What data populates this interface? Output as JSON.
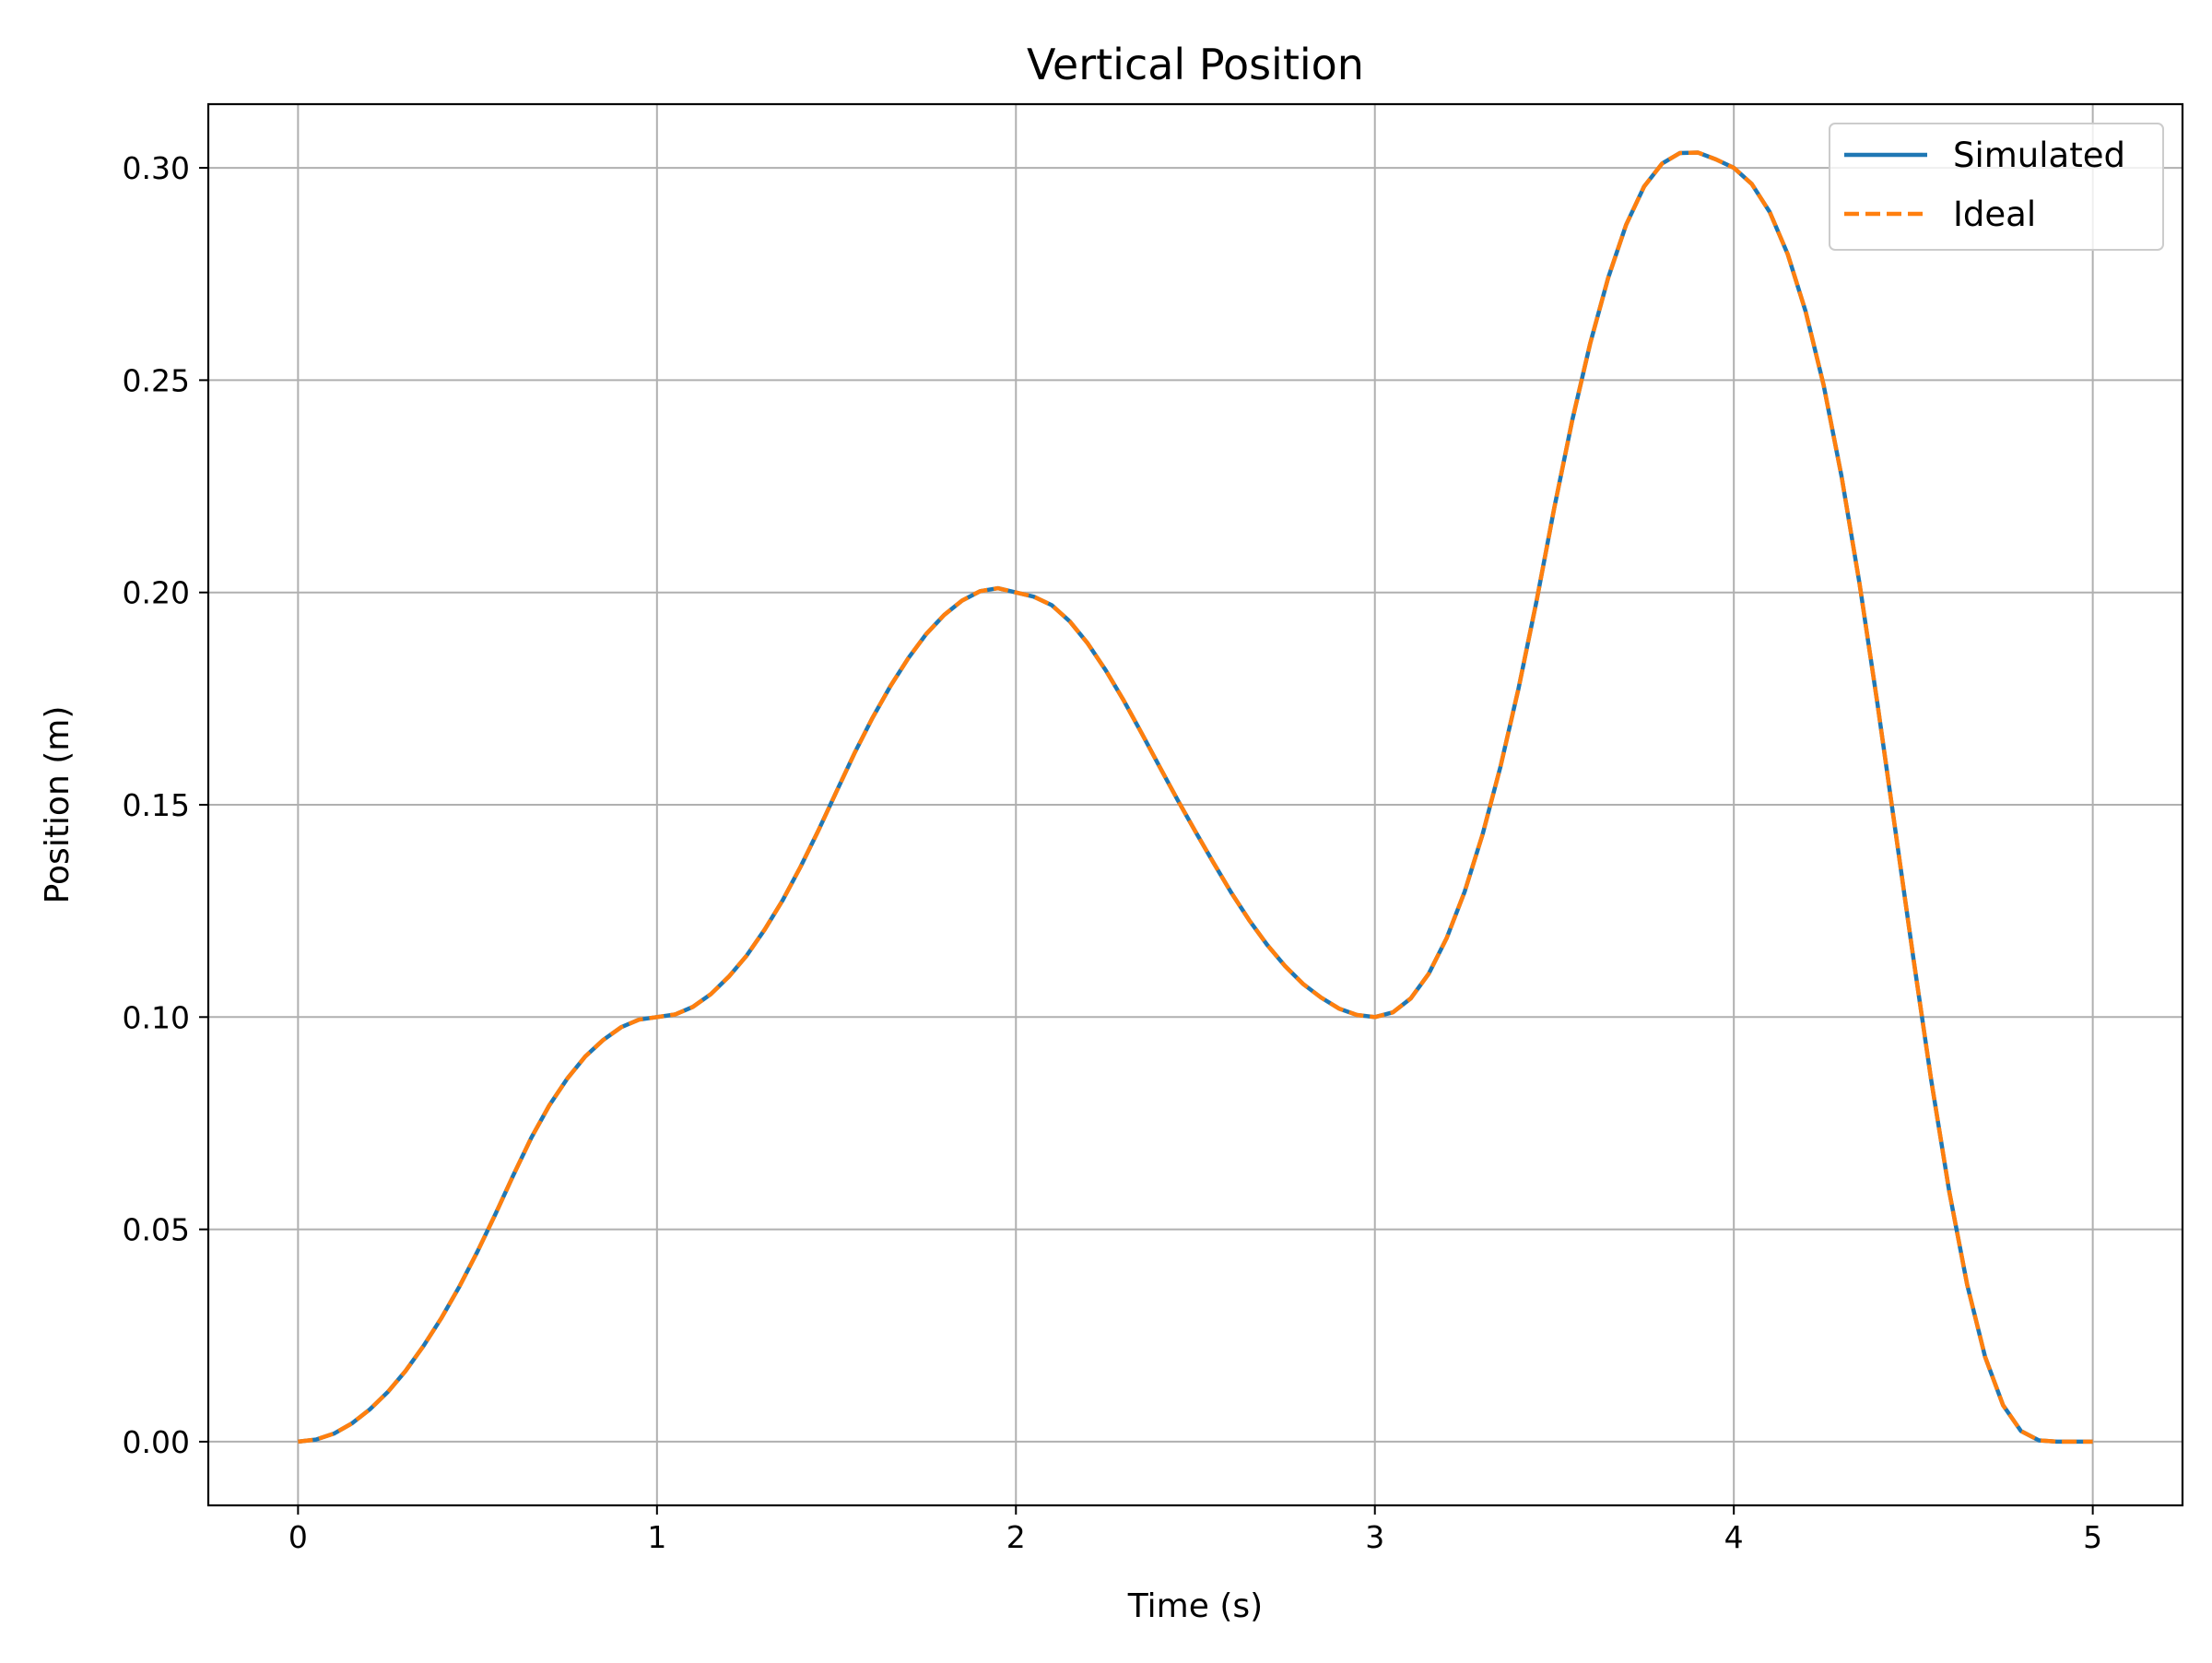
{
  "chart_data": {
    "type": "line",
    "title": "Vertical Position",
    "xlabel": "Time (s)",
    "ylabel": "Position (m)",
    "xlim": [
      -0.25,
      5.25
    ],
    "ylim": [
      -0.015,
      0.315
    ],
    "x_ticks": [
      0,
      1,
      2,
      3,
      4,
      5
    ],
    "x_tick_labels": [
      "0",
      "1",
      "2",
      "3",
      "4",
      "5"
    ],
    "y_ticks": [
      0,
      0.05,
      0.1,
      0.15,
      0.2,
      0.25,
      0.3
    ],
    "y_tick_labels": [
      "0.00",
      "0.05",
      "0.10",
      "0.15",
      "0.20",
      "0.25",
      "0.30"
    ],
    "grid": true,
    "legend_position": "top-right",
    "x": [
      0,
      0.05,
      0.1,
      0.15,
      0.2,
      0.25,
      0.3,
      0.35,
      0.4,
      0.45,
      0.5,
      0.55,
      0.6,
      0.65,
      0.7,
      0.75,
      0.8,
      0.85,
      0.9,
      0.95,
      1,
      1.05,
      1.1,
      1.15,
      1.2,
      1.25,
      1.3,
      1.35,
      1.4,
      1.45,
      1.5,
      1.55,
      1.6,
      1.65,
      1.7,
      1.75,
      1.8,
      1.85,
      1.9,
      1.95,
      2,
      2.05,
      2.1,
      2.15,
      2.2,
      2.25,
      2.3,
      2.35,
      2.4,
      2.45,
      2.5,
      2.55,
      2.6,
      2.65,
      2.7,
      2.75,
      2.8,
      2.85,
      2.9,
      2.95,
      3,
      3.05,
      3.1,
      3.15,
      3.2,
      3.25,
      3.3,
      3.35,
      3.4,
      3.45,
      3.5,
      3.55,
      3.6,
      3.65,
      3.7,
      3.75,
      3.8,
      3.85,
      3.9,
      3.95,
      4,
      4.05,
      4.1,
      4.15,
      4.2,
      4.25,
      4.3,
      4.35,
      4.4,
      4.45,
      4.5,
      4.55,
      4.6,
      4.65,
      4.7,
      4.75,
      4.8,
      4.85,
      4.9,
      4.95,
      5
    ],
    "series": [
      {
        "name": "Simulated",
        "color": "#1f77b4",
        "style": "solid",
        "values": [
          0,
          0.0005,
          0.0019,
          0.0043,
          0.0076,
          0.0117,
          0.0167,
          0.0226,
          0.0292,
          0.0366,
          0.0448,
          0.0536,
          0.0628,
          0.0716,
          0.0792,
          0.0855,
          0.0907,
          0.0946,
          0.0976,
          0.0994,
          0.1,
          0.1006,
          0.1024,
          0.1054,
          0.1095,
          0.1145,
          0.1206,
          0.1275,
          0.1354,
          0.144,
          0.1531,
          0.1621,
          0.1704,
          0.1779,
          0.1845,
          0.1902,
          0.1947,
          0.1981,
          0.2003,
          0.201,
          0.2,
          0.199,
          0.197,
          0.1932,
          0.188,
          0.1817,
          0.1746,
          0.1669,
          0.159,
          0.1512,
          0.1437,
          0.1364,
          0.1293,
          0.1228,
          0.117,
          0.112,
          0.1078,
          0.1046,
          0.102,
          0.1005,
          0.1,
          0.1011,
          0.1044,
          0.1102,
          0.1186,
          0.1295,
          0.143,
          0.159,
          0.1773,
          0.1978,
          0.22,
          0.2406,
          0.2587,
          0.2741,
          0.2866,
          0.2956,
          0.301,
          0.3035,
          0.3036,
          0.302,
          0.3,
          0.2962,
          0.2896,
          0.2797,
          0.2662,
          0.2489,
          0.2274,
          0.2022,
          0.1739,
          0.144,
          0.114,
          0.0851,
          0.059,
          0.037,
          0.02,
          0.0086,
          0.0025,
          0.0003,
          0,
          0,
          0
        ]
      },
      {
        "name": "Ideal",
        "color": "#ff7f0e",
        "style": "dashed",
        "values": [
          0,
          0.0005,
          0.0019,
          0.0043,
          0.0076,
          0.0117,
          0.0167,
          0.0226,
          0.0292,
          0.0366,
          0.0448,
          0.0536,
          0.0628,
          0.0716,
          0.0792,
          0.0855,
          0.0907,
          0.0946,
          0.0976,
          0.0994,
          0.1,
          0.1006,
          0.1024,
          0.1054,
          0.1095,
          0.1145,
          0.1206,
          0.1275,
          0.1354,
          0.144,
          0.1531,
          0.1621,
          0.1704,
          0.1779,
          0.1845,
          0.1902,
          0.1947,
          0.1981,
          0.2003,
          0.201,
          0.2,
          0.199,
          0.197,
          0.1932,
          0.188,
          0.1817,
          0.1746,
          0.1669,
          0.159,
          0.1512,
          0.1437,
          0.1364,
          0.1293,
          0.1228,
          0.117,
          0.112,
          0.1078,
          0.1046,
          0.102,
          0.1005,
          0.1,
          0.1011,
          0.1044,
          0.1102,
          0.1186,
          0.1295,
          0.143,
          0.159,
          0.1773,
          0.1978,
          0.22,
          0.2406,
          0.2587,
          0.2741,
          0.2866,
          0.2956,
          0.301,
          0.3035,
          0.3036,
          0.302,
          0.3,
          0.2962,
          0.2896,
          0.2797,
          0.2662,
          0.2489,
          0.2274,
          0.2022,
          0.1739,
          0.144,
          0.114,
          0.0851,
          0.059,
          0.037,
          0.02,
          0.0086,
          0.0025,
          0.0003,
          0,
          0,
          0
        ]
      }
    ]
  }
}
